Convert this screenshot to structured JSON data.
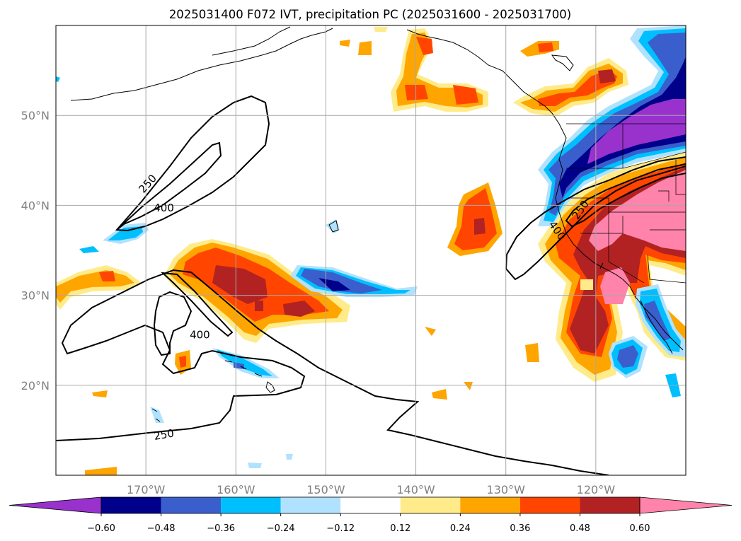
{
  "title": "2025031400 F072 IVT, precipitation PC (2025031600 - 2025031700)",
  "map": {
    "lon_range": [
      -180,
      -110
    ],
    "lat_range": [
      10,
      60
    ],
    "x_ticks": [
      {
        "lon": -170,
        "label": "170°W"
      },
      {
        "lon": -160,
        "label": "160°W"
      },
      {
        "lon": -150,
        "label": "150°W"
      },
      {
        "lon": -140,
        "label": "140°W"
      },
      {
        "lon": -130,
        "label": "130°W"
      },
      {
        "lon": -120,
        "label": "120°W"
      }
    ],
    "y_ticks": [
      {
        "lat": 20,
        "label": "20°N"
      },
      {
        "lat": 30,
        "label": "30°N"
      },
      {
        "lat": 40,
        "label": "40°N"
      },
      {
        "lat": 50,
        "label": "50°N"
      }
    ],
    "grid": true,
    "contour_labels": [
      {
        "text": "250",
        "lon": -169.8,
        "lat": 42.4,
        "rot": -48
      },
      {
        "text": "400",
        "lon": -168,
        "lat": 39.7,
        "rot": 0
      },
      {
        "text": "400",
        "lon": -164,
        "lat": 25.6,
        "rot": 0
      },
      {
        "text": "250",
        "lon": -168,
        "lat": 14.5,
        "rot": -10
      },
      {
        "text": "250",
        "lon": -121.7,
        "lat": 39.5,
        "rot": -55
      },
      {
        "text": "400",
        "lon": -124.3,
        "lat": 37.2,
        "rot": 55
      }
    ]
  },
  "colorbar": {
    "colors": [
      "#9932cc",
      "#00008b",
      "#3a5fcd",
      "#00bfff",
      "#b0e2ff",
      "#ffffff",
      "#ffeb8a",
      "#ffa500",
      "#ff4500",
      "#b22222",
      "#ff83aa"
    ],
    "tick_labels": [
      "−0.60",
      "−0.48",
      "−0.36",
      "−0.24",
      "−0.12",
      "0.12",
      "0.24",
      "0.36",
      "0.48",
      "0.60"
    ]
  },
  "palette": {
    "pos1": "#ffeb8a",
    "pos2": "#ffa500",
    "pos3": "#ff4500",
    "pos4": "#b22222",
    "pos5": "#ff83aa",
    "neg1": "#b0e2ff",
    "neg2": "#00bfff",
    "neg3": "#3a5fcd",
    "neg4": "#00008b",
    "neg5": "#9932cc"
  }
}
